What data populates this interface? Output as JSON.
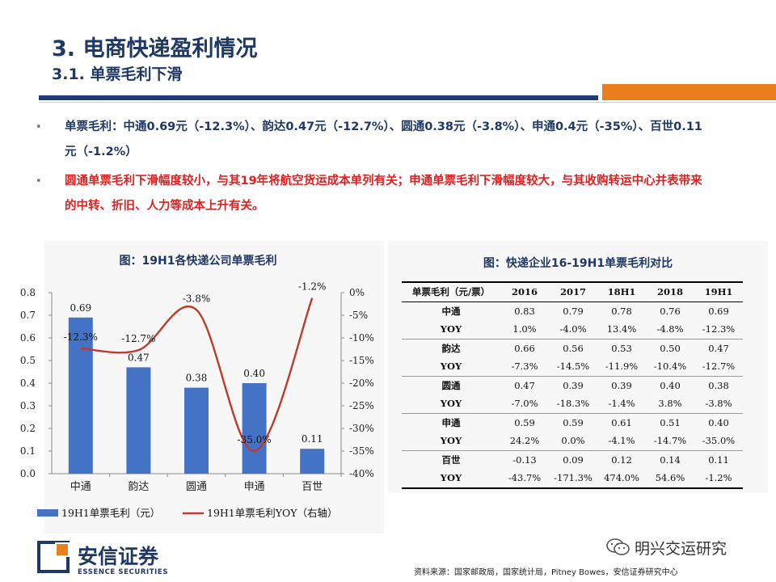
{
  "header": {
    "title": "3. 电商快递盈利情况",
    "subtitle": "3.1. 单票毛利下滑"
  },
  "bullets": [
    {
      "marker": "•",
      "text": "单票毛利：中通0.69元（-12.3%）、韵达0.47元（-12.7%）、圆通0.38元（-3.8%）、申通0.4元（-35%）、百世0.11元（-1.2%）",
      "color": "#1f3864"
    },
    {
      "marker": "•",
      "text": "圆通单票毛利下滑幅度较小，与其19年将航空货运成本单列有关；申通单票毛利下滑幅度较大，与其收购转运中心并表带来的中转、折旧、人力等成本上升有关。",
      "color": "#e02020"
    }
  ],
  "left_figure": {
    "title": "图：19H1各快递公司单票毛利"
  },
  "right_figure": {
    "title": "图：快递企业16-19H1单票毛利对比"
  },
  "chart_data": [
    {
      "type": "bar",
      "categories": [
        "中通",
        "韵达",
        "圆通",
        "申通",
        "百世"
      ],
      "series": [
        {
          "name": "19H1单票毛利（元）",
          "type": "bar",
          "axis": "left",
          "values": [
            0.69,
            0.47,
            0.38,
            0.4,
            0.11
          ],
          "labels": [
            "0.69",
            "0.47",
            "0.38",
            "0.40",
            "0.11"
          ],
          "color": "#4472c4"
        },
        {
          "name": "19H1单票毛利YOY（右轴）",
          "type": "line",
          "axis": "right",
          "values": [
            -12.3,
            -12.7,
            -3.8,
            -35.0,
            -1.2
          ],
          "labels": [
            "-12.3%",
            "-12.7%",
            "-3.8%",
            "-35.0%",
            "-1.2%"
          ],
          "color": "#c0392b"
        }
      ],
      "y_left": {
        "min": 0,
        "max": 0.8,
        "ticks": [
          "0.0",
          "0.1",
          "0.2",
          "0.3",
          "0.4",
          "0.5",
          "0.6",
          "0.7",
          "0.8"
        ]
      },
      "y_right": {
        "min": -40,
        "max": 0,
        "ticks": [
          "0%",
          "-5%",
          "-10%",
          "-15%",
          "-20%",
          "-25%",
          "-30%",
          "-35%",
          "-40%"
        ]
      },
      "legend_position": "bottom",
      "grid": false
    },
    {
      "type": "table",
      "header": [
        "单票毛利（元/票）",
        "2016",
        "2017",
        "18H1",
        "2018",
        "19H1"
      ],
      "rows": [
        [
          "中通",
          "0.83",
          "0.79",
          "0.78",
          "0.76",
          "0.69"
        ],
        [
          "YOY",
          "1.0%",
          "-4.0%",
          "13.4%",
          "-4.8%",
          "-12.3%"
        ],
        [
          "韵达",
          "0.66",
          "0.56",
          "0.53",
          "0.50",
          "0.47"
        ],
        [
          "YOY",
          "-7.3%",
          "-14.5%",
          "-11.9%",
          "-10.4%",
          "-12.7%"
        ],
        [
          "圆通",
          "0.47",
          "0.39",
          "0.39",
          "0.40",
          "0.38"
        ],
        [
          "YOY",
          "-7.0%",
          "-18.3%",
          "-1.4%",
          "3.8%",
          "-3.8%"
        ],
        [
          "申通",
          "0.59",
          "0.59",
          "0.61",
          "0.51",
          "0.40"
        ],
        [
          "YOY",
          "24.2%",
          "0.0%",
          "-4.1%",
          "-14.7%",
          "-35.0%"
        ],
        [
          "百世",
          "-0.13",
          "0.09",
          "0.12",
          "0.14",
          "0.11"
        ],
        [
          "YOY",
          "-43.7%",
          "-171.3%",
          "474.0%",
          "54.6%",
          "-1.2%"
        ]
      ]
    }
  ],
  "footer": {
    "logo_cn": "安信证券",
    "logo_en": "ESSENCE SECURITIES",
    "wechat": "明兴交运研究",
    "source": "资料来源：国家邮政局，国家统计局，Pitney Bowes，安信证券研究中心"
  },
  "colors": {
    "navy": "#1f3864",
    "orange": "#e87e1c",
    "red_text": "#e02020"
  },
  "icons": [
    "wechat-icon"
  ]
}
